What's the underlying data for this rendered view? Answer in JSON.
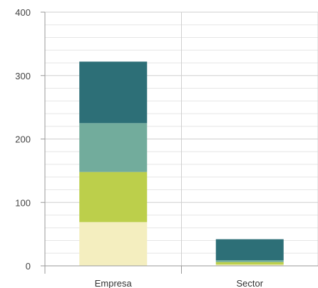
{
  "chart_data": {
    "type": "bar",
    "stacked": true,
    "categories": [
      "Empresa",
      "Sector"
    ],
    "series": [
      {
        "values": [
          69,
          2
        ],
        "color": "#F4EEBF"
      },
      {
        "values": [
          79,
          4
        ],
        "color": "#BCCF4B"
      },
      {
        "values": [
          77,
          3
        ],
        "color": "#72AC9C"
      },
      {
        "values": [
          97,
          33
        ],
        "color": "#2D6F77"
      }
    ],
    "title": "",
    "xlabel": "",
    "ylabel": "",
    "ylim": [
      0,
      400
    ],
    "yticks": [
      "0",
      "100",
      "200",
      "300",
      "400"
    ],
    "grid": true
  }
}
